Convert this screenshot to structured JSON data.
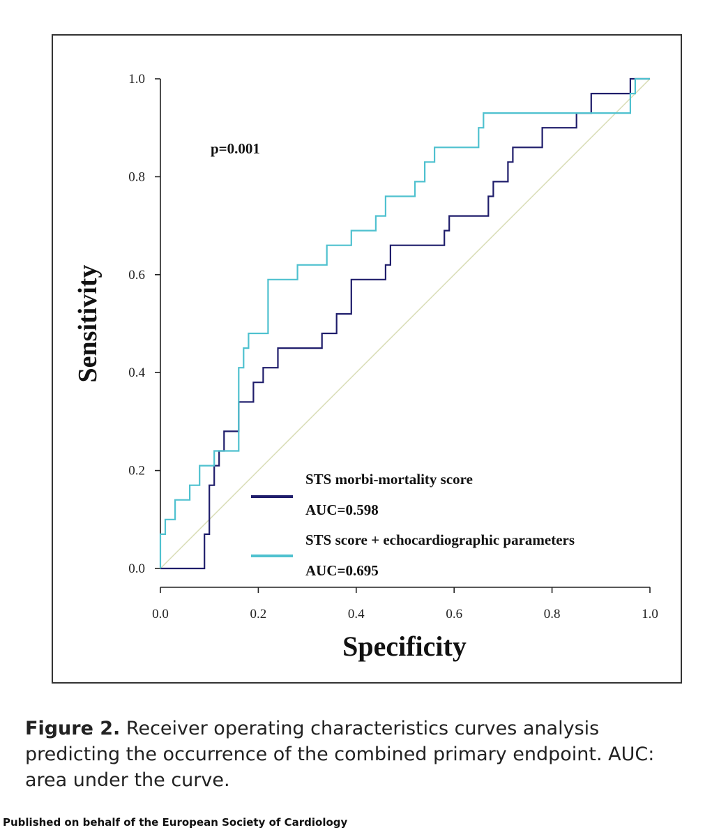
{
  "chart_data": {
    "type": "line",
    "xlabel": "Specificity",
    "ylabel": "Sensitivity",
    "xlim": [
      0.0,
      1.0
    ],
    "ylim": [
      0.0,
      1.0
    ],
    "x_ticks": [
      "0.0",
      "0.2",
      "0.4",
      "0.6",
      "0.8",
      "1.0"
    ],
    "y_ticks": [
      "0.0",
      "0.2",
      "0.4",
      "0.6",
      "0.8",
      "1.0"
    ],
    "grid": false,
    "legend_position": "bottom-right",
    "annotation": "p=0.001",
    "series": [
      {
        "name": "STS morbi-mortality score",
        "subtitle": "AUC=0.598",
        "color": "#1f1d6b",
        "points": [
          [
            0,
            0
          ],
          [
            0.09,
            0
          ],
          [
            0.09,
            0.07
          ],
          [
            0.1,
            0.07
          ],
          [
            0.1,
            0.17
          ],
          [
            0.11,
            0.17
          ],
          [
            0.11,
            0.21
          ],
          [
            0.12,
            0.21
          ],
          [
            0.12,
            0.24
          ],
          [
            0.13,
            0.24
          ],
          [
            0.13,
            0.28
          ],
          [
            0.16,
            0.28
          ],
          [
            0.16,
            0.34
          ],
          [
            0.19,
            0.34
          ],
          [
            0.19,
            0.38
          ],
          [
            0.21,
            0.38
          ],
          [
            0.21,
            0.41
          ],
          [
            0.24,
            0.41
          ],
          [
            0.24,
            0.45
          ],
          [
            0.33,
            0.45
          ],
          [
            0.33,
            0.48
          ],
          [
            0.36,
            0.48
          ],
          [
            0.36,
            0.52
          ],
          [
            0.39,
            0.52
          ],
          [
            0.39,
            0.59
          ],
          [
            0.46,
            0.59
          ],
          [
            0.46,
            0.62
          ],
          [
            0.47,
            0.62
          ],
          [
            0.47,
            0.66
          ],
          [
            0.58,
            0.66
          ],
          [
            0.58,
            0.69
          ],
          [
            0.59,
            0.69
          ],
          [
            0.59,
            0.72
          ],
          [
            0.67,
            0.72
          ],
          [
            0.67,
            0.76
          ],
          [
            0.68,
            0.76
          ],
          [
            0.68,
            0.79
          ],
          [
            0.71,
            0.79
          ],
          [
            0.71,
            0.83
          ],
          [
            0.72,
            0.83
          ],
          [
            0.72,
            0.86
          ],
          [
            0.78,
            0.86
          ],
          [
            0.78,
            0.9
          ],
          [
            0.85,
            0.9
          ],
          [
            0.85,
            0.93
          ],
          [
            0.88,
            0.93
          ],
          [
            0.88,
            0.97
          ],
          [
            0.96,
            0.97
          ],
          [
            0.96,
            1.0
          ],
          [
            1.0,
            1.0
          ]
        ]
      },
      {
        "name": "STS score + echocardiographic parameters",
        "subtitle": "AUC=0.695",
        "color": "#4fc1cf",
        "points": [
          [
            0,
            0
          ],
          [
            0,
            0.07
          ],
          [
            0.01,
            0.07
          ],
          [
            0.01,
            0.1
          ],
          [
            0.03,
            0.1
          ],
          [
            0.03,
            0.14
          ],
          [
            0.06,
            0.14
          ],
          [
            0.06,
            0.17
          ],
          [
            0.08,
            0.17
          ],
          [
            0.08,
            0.21
          ],
          [
            0.11,
            0.21
          ],
          [
            0.11,
            0.24
          ],
          [
            0.16,
            0.24
          ],
          [
            0.16,
            0.41
          ],
          [
            0.17,
            0.41
          ],
          [
            0.17,
            0.45
          ],
          [
            0.18,
            0.45
          ],
          [
            0.18,
            0.48
          ],
          [
            0.22,
            0.48
          ],
          [
            0.22,
            0.59
          ],
          [
            0.28,
            0.59
          ],
          [
            0.28,
            0.62
          ],
          [
            0.34,
            0.62
          ],
          [
            0.34,
            0.66
          ],
          [
            0.39,
            0.66
          ],
          [
            0.39,
            0.69
          ],
          [
            0.44,
            0.69
          ],
          [
            0.44,
            0.72
          ],
          [
            0.46,
            0.72
          ],
          [
            0.46,
            0.76
          ],
          [
            0.52,
            0.76
          ],
          [
            0.52,
            0.79
          ],
          [
            0.54,
            0.79
          ],
          [
            0.54,
            0.83
          ],
          [
            0.56,
            0.83
          ],
          [
            0.56,
            0.86
          ],
          [
            0.65,
            0.86
          ],
          [
            0.65,
            0.9
          ],
          [
            0.66,
            0.9
          ],
          [
            0.66,
            0.93
          ],
          [
            0.96,
            0.93
          ],
          [
            0.96,
            0.97
          ],
          [
            0.97,
            0.97
          ],
          [
            0.97,
            1.0
          ],
          [
            1.0,
            1.0
          ]
        ]
      }
    ],
    "reference_line_color": "#d8dcb4"
  },
  "caption": {
    "label": "Figure 2.",
    "text": "Receiver operating characteristics curves analysis predicting the occurrence of the combined primary endpoint. AUC: area under the curve."
  },
  "footer": "Published on behalf of the European Society of Cardiology"
}
